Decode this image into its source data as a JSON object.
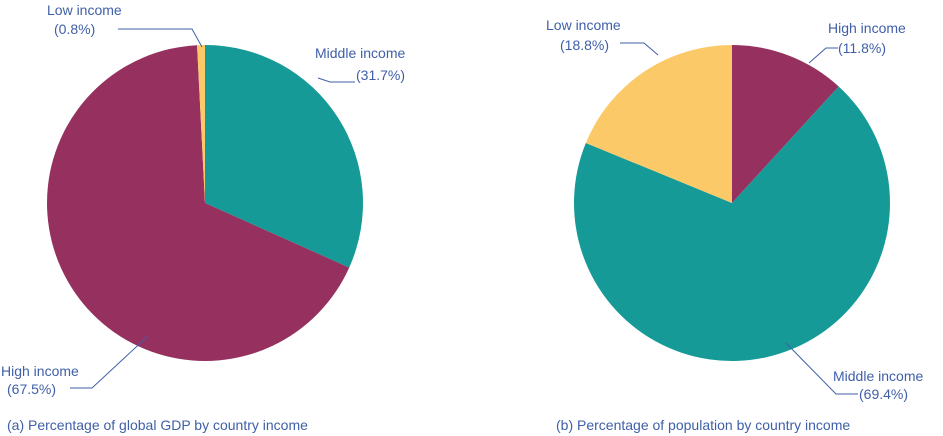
{
  "colors": {
    "high_income": "#96305f",
    "middle_income": "#159a97",
    "low_income": "#fbc967",
    "text": "#3f5fa8"
  },
  "chart_data": [
    {
      "type": "pie",
      "title": "(a) Percentage of global GDP by country income",
      "slices": [
        {
          "name": "Middle income",
          "value": 31.7,
          "pct_label": "(31.7%)",
          "color": "#159a97"
        },
        {
          "name": "High income",
          "value": 67.5,
          "pct_label": "(67.5%)",
          "color": "#96305f"
        },
        {
          "name": "Low income",
          "value": 0.8,
          "pct_label": "(0.8%)",
          "color": "#fbc967"
        }
      ]
    },
    {
      "type": "pie",
      "title": "(b) Percentage of population by country income",
      "slices": [
        {
          "name": "High income",
          "value": 11.8,
          "pct_label": "(11.8%)",
          "color": "#96305f"
        },
        {
          "name": "Middle income",
          "value": 69.4,
          "pct_label": "(69.4%)",
          "color": "#159a97"
        },
        {
          "name": "Low income",
          "value": 18.8,
          "pct_label": "(18.8%)",
          "color": "#fbc967"
        }
      ]
    }
  ]
}
